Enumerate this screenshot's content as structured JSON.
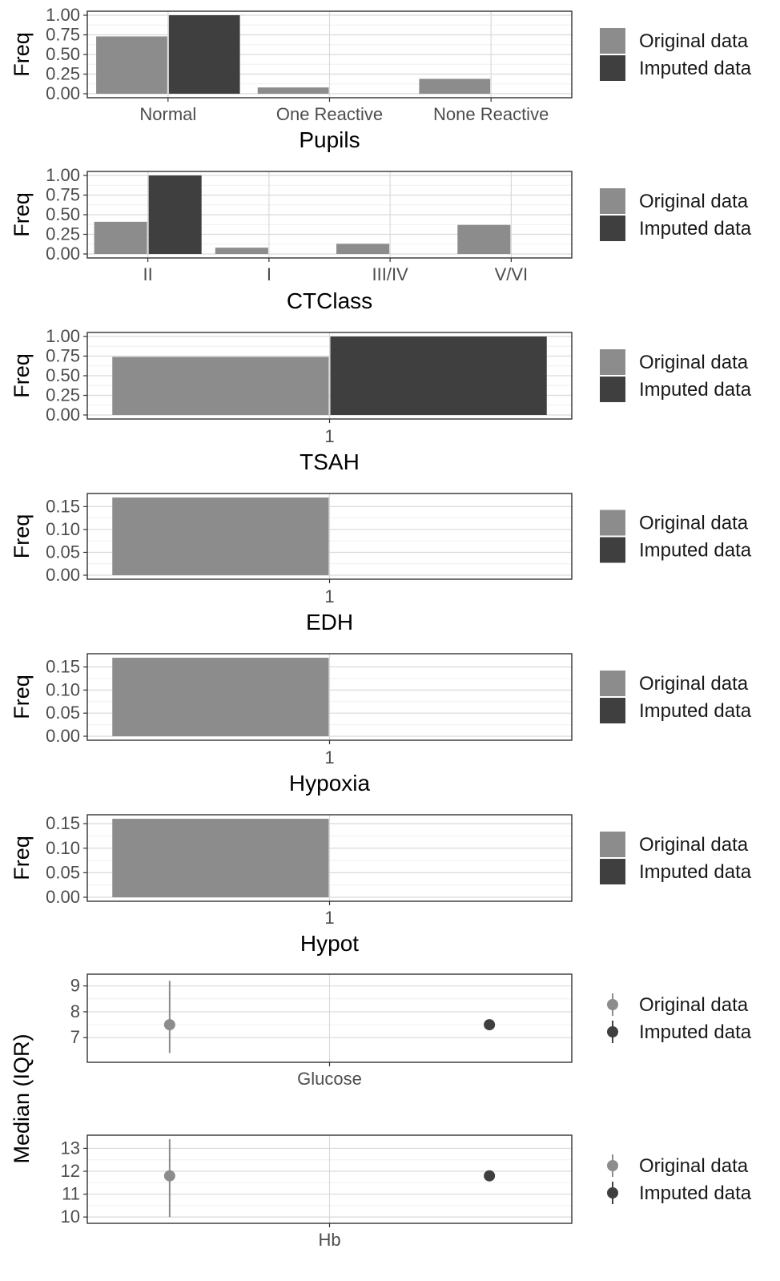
{
  "legend": {
    "original_label": "Original data",
    "imputed_label": "Imputed data"
  },
  "colors": {
    "original": "#8c8c8c",
    "imputed": "#3f3f3f",
    "panel_border": "#333333",
    "grid_major": "#dadada",
    "grid_minor": "#efefef"
  },
  "chart_data": [
    {
      "type": "bar",
      "title": "",
      "xlabel": "Pupils",
      "ylabel": "Freq",
      "categories": [
        "Normal",
        "One Reactive",
        "None Reactive"
      ],
      "series": [
        {
          "name": "Original data",
          "values": [
            0.73,
            0.08,
            0.19
          ]
        },
        {
          "name": "Imputed data",
          "values": [
            1.0,
            0,
            0
          ]
        }
      ],
      "ylim": [
        0,
        1.0
      ],
      "yticks": [
        0.0,
        0.25,
        0.5,
        0.75,
        1.0
      ],
      "ytick_labels": [
        "0.00",
        "0.25",
        "0.50",
        "0.75",
        "1.00"
      ],
      "grid": true,
      "legend_position": "right"
    },
    {
      "type": "bar",
      "title": "",
      "xlabel": "CTClass",
      "ylabel": "Freq",
      "categories": [
        "II",
        "I",
        "III/IV",
        "V/VI"
      ],
      "series": [
        {
          "name": "Original data",
          "values": [
            0.41,
            0.08,
            0.13,
            0.37
          ]
        },
        {
          "name": "Imputed data",
          "values": [
            1.0,
            0,
            0,
            0
          ]
        }
      ],
      "ylim": [
        0,
        1.0
      ],
      "yticks": [
        0.0,
        0.25,
        0.5,
        0.75,
        1.0
      ],
      "ytick_labels": [
        "0.00",
        "0.25",
        "0.50",
        "0.75",
        "1.00"
      ],
      "grid": true,
      "legend_position": "right"
    },
    {
      "type": "bar",
      "title": "",
      "xlabel": "TSAH",
      "ylabel": "Freq",
      "categories": [
        "1"
      ],
      "series": [
        {
          "name": "Original data",
          "values": [
            0.74
          ]
        },
        {
          "name": "Imputed data",
          "values": [
            1.0
          ]
        }
      ],
      "ylim": [
        0,
        1.0
      ],
      "yticks": [
        0.0,
        0.25,
        0.5,
        0.75,
        1.0
      ],
      "ytick_labels": [
        "0.00",
        "0.25",
        "0.50",
        "0.75",
        "1.00"
      ],
      "grid": true,
      "legend_position": "right"
    },
    {
      "type": "bar",
      "title": "",
      "xlabel": "EDH",
      "ylabel": "Freq",
      "categories": [
        "1"
      ],
      "series": [
        {
          "name": "Original data",
          "values": [
            0.17
          ]
        },
        {
          "name": "Imputed data",
          "values": [
            0
          ]
        }
      ],
      "ylim": [
        0,
        0.17
      ],
      "yticks": [
        0.0,
        0.05,
        0.1,
        0.15
      ],
      "ytick_labels": [
        "0.00",
        "0.05",
        "0.10",
        "0.15"
      ],
      "grid": true,
      "legend_position": "right"
    },
    {
      "type": "bar",
      "title": "",
      "xlabel": "Hypoxia",
      "ylabel": "Freq",
      "categories": [
        "1"
      ],
      "series": [
        {
          "name": "Original data",
          "values": [
            0.17
          ]
        },
        {
          "name": "Imputed data",
          "values": [
            0
          ]
        }
      ],
      "ylim": [
        0,
        0.17
      ],
      "yticks": [
        0.0,
        0.05,
        0.1,
        0.15
      ],
      "ytick_labels": [
        "0.00",
        "0.05",
        "0.10",
        "0.15"
      ],
      "grid": true,
      "legend_position": "right"
    },
    {
      "type": "bar",
      "title": "",
      "xlabel": "Hypot",
      "ylabel": "Freq",
      "categories": [
        "1"
      ],
      "series": [
        {
          "name": "Original data",
          "values": [
            0.16
          ]
        },
        {
          "name": "Imputed data",
          "values": [
            0
          ]
        }
      ],
      "ylim": [
        0,
        0.16
      ],
      "yticks": [
        0.0,
        0.05,
        0.1,
        0.15
      ],
      "ytick_labels": [
        "0.00",
        "0.05",
        "0.10",
        "0.15"
      ],
      "grid": true,
      "legend_position": "right"
    },
    {
      "type": "scatter",
      "title": "",
      "xlabel": "",
      "ylabel": "Median (IQR)",
      "categories": [
        "Glucose"
      ],
      "series": [
        {
          "name": "Original data",
          "values": [
            {
              "median": 7.5,
              "q1": 6.4,
              "q3": 9.2
            }
          ]
        },
        {
          "name": "Imputed data",
          "values": [
            {
              "median": 7.5,
              "q1": 7.5,
              "q3": 7.5
            }
          ]
        }
      ],
      "ylim": [
        6.2,
        9.3
      ],
      "yticks": [
        7,
        8,
        9
      ],
      "ytick_labels": [
        "7",
        "8",
        "9"
      ],
      "grid": true,
      "legend_position": "right"
    },
    {
      "type": "scatter",
      "title": "",
      "xlabel": "",
      "ylabel": "Median (IQR)",
      "categories": [
        "Hb"
      ],
      "series": [
        {
          "name": "Original data",
          "values": [
            {
              "median": 11.8,
              "q1": 10.0,
              "q3": 13.4
            }
          ]
        },
        {
          "name": "Imputed data",
          "values": [
            {
              "median": 11.8,
              "q1": 11.8,
              "q3": 11.8
            }
          ]
        }
      ],
      "ylim": [
        9.9,
        13.4
      ],
      "yticks": [
        10,
        11,
        12,
        13
      ],
      "ytick_labels": [
        "10",
        "11",
        "12",
        "13"
      ],
      "grid": true,
      "legend_position": "right"
    }
  ]
}
